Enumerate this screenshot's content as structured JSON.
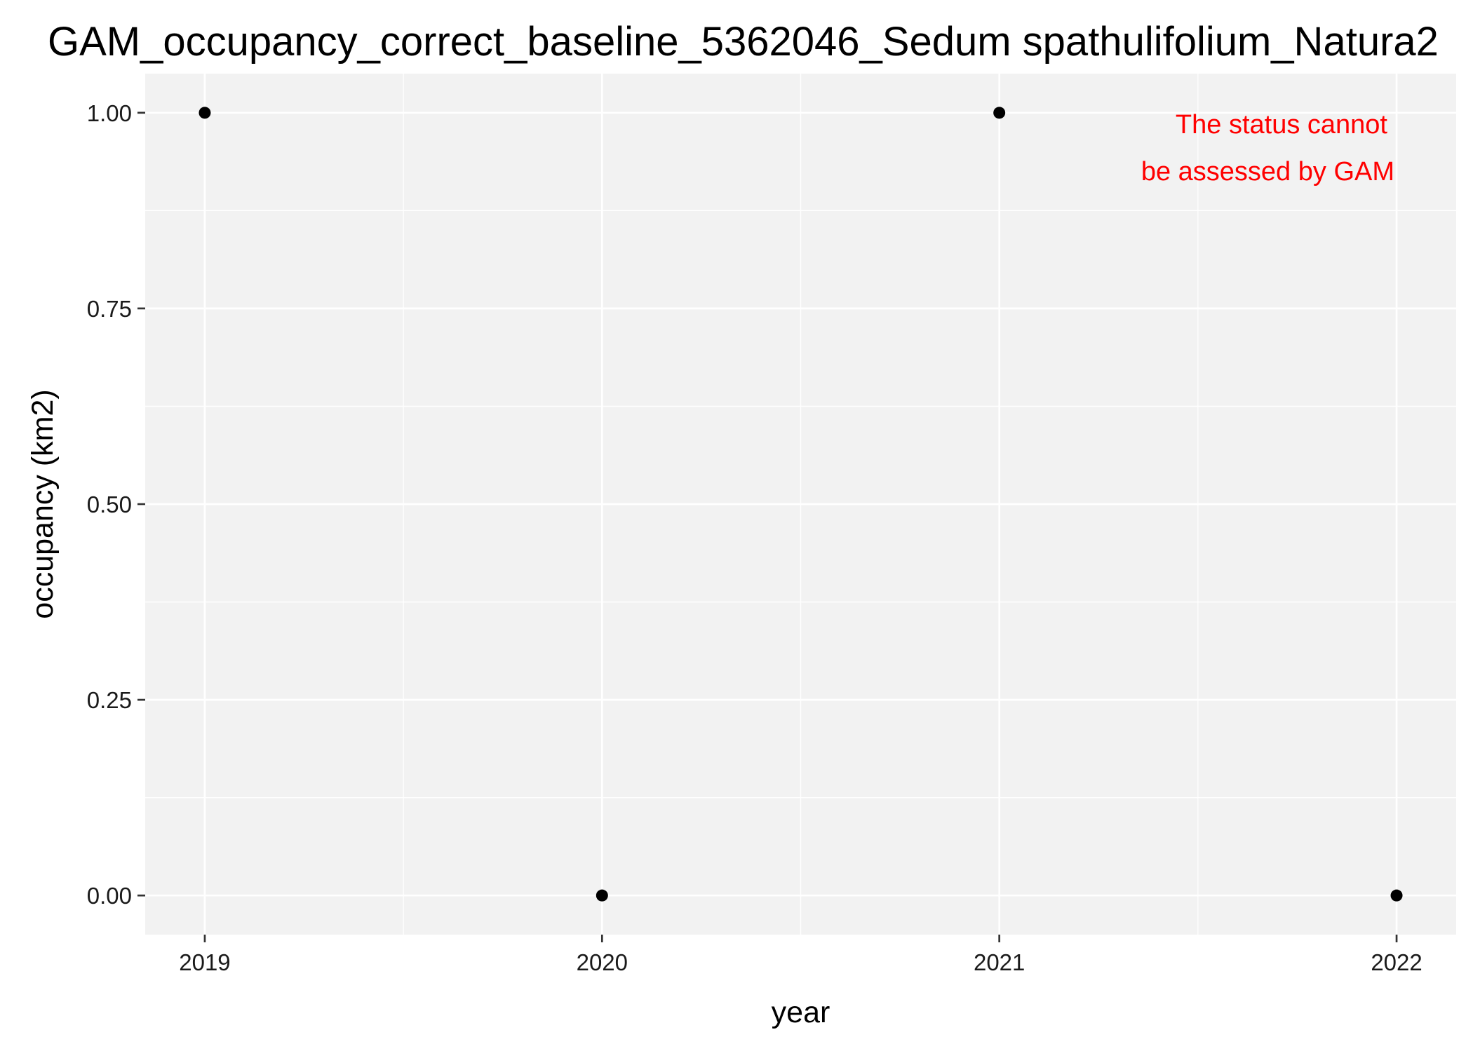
{
  "chart_data": {
    "type": "scatter",
    "title": "GAM_occupancy_correct_baseline_5362046_Sedum spathulifolium_Natura2",
    "xlabel": "year",
    "ylabel": "occupancy (km2)",
    "x_ticks": [
      "2019",
      "2020",
      "2021",
      "2022"
    ],
    "y_ticks": [
      "0.00",
      "0.25",
      "0.50",
      "0.75",
      "1.00"
    ],
    "xlim": [
      2018.85,
      2022.15
    ],
    "ylim": [
      -0.05,
      1.05
    ],
    "grid": true,
    "points": [
      {
        "x": 2019,
        "y": 1
      },
      {
        "x": 2020,
        "y": 0
      },
      {
        "x": 2021,
        "y": 1
      },
      {
        "x": 2022,
        "y": 0
      }
    ],
    "annotation": {
      "lines": [
        "The status cannot",
        "be assessed by GAM"
      ],
      "color": "#ff0000"
    },
    "colors": {
      "panel_background": "#f2f2f2",
      "grid": "#ffffff",
      "point": "#000000"
    }
  }
}
